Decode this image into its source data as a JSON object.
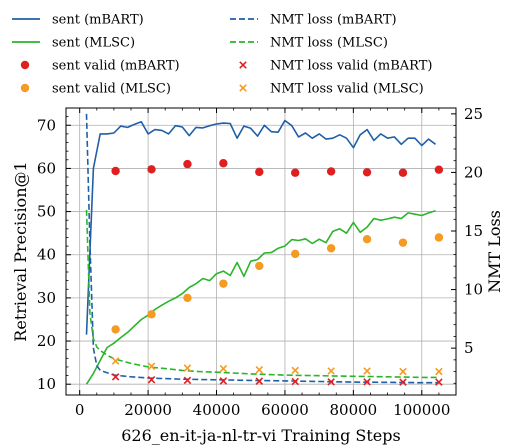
{
  "chart_data": {
    "type": "line",
    "xlabel": "626_en-it-ja-nl-tr-vi Training Steps",
    "ylabel": "Retrieval Precision@1",
    "y2label": "NMT Loss",
    "xlim": [
      -4000,
      110000
    ],
    "ylim": [
      7.5,
      74
    ],
    "y2lim": [
      1.0,
      25.5
    ],
    "xticks": [
      0,
      20000,
      40000,
      60000,
      80000,
      100000
    ],
    "xtick_labels": [
      "0",
      "20000",
      "40000",
      "60000",
      "80000",
      "100000"
    ],
    "yticks": [
      10,
      20,
      30,
      40,
      50,
      60,
      70
    ],
    "y2ticks": [
      5,
      10,
      15,
      20,
      25
    ],
    "grid": true,
    "legend_position": "top, outside, two columns",
    "legend": [
      {
        "label": "sent (mBART)",
        "color": "#1f5fa8",
        "style": "solid"
      },
      {
        "label": "NMT loss (mBART)",
        "color": "#1f5fa8",
        "style": "dashed"
      },
      {
        "label": "sent (MLSC)",
        "color": "#2ab52a",
        "style": "solid"
      },
      {
        "label": "NMT loss (MLSC)",
        "color": "#2ab52a",
        "style": "dashed"
      },
      {
        "label": "sent valid (mBART)",
        "color": "#e02020",
        "style": "dot"
      },
      {
        "label": "NMT loss valid (mBART)",
        "color": "#e02020",
        "style": "x"
      },
      {
        "label": "sent valid (MLSC)",
        "color": "#f59a23",
        "style": "dot"
      },
      {
        "label": "NMT loss valid (MLSC)",
        "color": "#f59a23",
        "style": "x"
      }
    ],
    "series": [
      {
        "name": "sent (mBART)",
        "axis": "left",
        "kind": "line",
        "color": "#1f5fa8",
        "x": [
          2000,
          4000,
          6000,
          8000,
          10000,
          12000,
          14000,
          16000,
          18000,
          20000,
          22000,
          24000,
          26000,
          28000,
          30000,
          32000,
          34000,
          36000,
          38000,
          40000,
          42000,
          44000,
          46000,
          48000,
          50000,
          52000,
          54000,
          56000,
          58000,
          60000,
          62000,
          64000,
          66000,
          68000,
          70000,
          72000,
          74000,
          76000,
          78000,
          80000,
          82000,
          84000,
          86000,
          88000,
          90000,
          92000,
          94000,
          96000,
          98000,
          100000,
          102000,
          104000
        ],
        "y": [
          21.5,
          60.0,
          68.0,
          68.0,
          68.2,
          69.8,
          69.5,
          70.2,
          70.8,
          68.0,
          69.0,
          68.8,
          68.0,
          69.9,
          69.6,
          67.6,
          69.5,
          69.4,
          69.9,
          70.3,
          70.5,
          70.4,
          67.0,
          69.8,
          69.3,
          67.5,
          70.0,
          68.5,
          68.4,
          71.1,
          69.9,
          67.3,
          68.2,
          67.0,
          68.0,
          66.8,
          67.0,
          67.8,
          67.0,
          64.8,
          67.8,
          69.0,
          66.5,
          68.0,
          67.0,
          67.3,
          65.6,
          67.0,
          67.0,
          65.3,
          66.8,
          65.6
        ]
      },
      {
        "name": "sent (MLSC)",
        "axis": "left",
        "kind": "line",
        "color": "#2ab52a",
        "x": [
          2000,
          4000,
          6000,
          8000,
          10000,
          12000,
          14000,
          16000,
          18000,
          20000,
          22000,
          24000,
          26000,
          28000,
          30000,
          32000,
          34000,
          36000,
          38000,
          40000,
          42000,
          44000,
          46000,
          48000,
          50000,
          52000,
          54000,
          56000,
          58000,
          60000,
          62000,
          64000,
          66000,
          68000,
          70000,
          72000,
          74000,
          76000,
          78000,
          80000,
          82000,
          84000,
          86000,
          88000,
          90000,
          92000,
          94000,
          96000,
          98000,
          100000,
          102000,
          104000
        ],
        "y": [
          10.0,
          12.5,
          15.5,
          18.5,
          19.5,
          20.8,
          22.0,
          23.5,
          25.0,
          26.0,
          27.3,
          28.3,
          29.2,
          30.0,
          31.0,
          32.4,
          33.3,
          34.5,
          34.0,
          35.6,
          36.2,
          35.2,
          38.2,
          35.0,
          38.5,
          38.9,
          40.4,
          40.5,
          41.5,
          42.0,
          43.5,
          43.3,
          43.7,
          42.6,
          43.6,
          42.8,
          45.4,
          46.0,
          45.0,
          47.5,
          45.2,
          46.4,
          48.4,
          48.0,
          48.3,
          48.7,
          48.4,
          49.7,
          49.4,
          49.1,
          49.7,
          50.2
        ]
      },
      {
        "name": "NMT loss (mBART)",
        "axis": "right",
        "kind": "line",
        "dashed": true,
        "color": "#1f5fa8",
        "x": [
          2000,
          3000,
          4000,
          5000,
          6000,
          8000,
          10000,
          15000,
          20000,
          30000,
          40000,
          50000,
          60000,
          70000,
          80000,
          90000,
          100000,
          105000
        ],
        "y": [
          25.0,
          14.0,
          5.0,
          3.5,
          3.1,
          2.9,
          2.7,
          2.55,
          2.45,
          2.35,
          2.3,
          2.25,
          2.2,
          2.15,
          2.1,
          2.08,
          2.05,
          2.05
        ]
      },
      {
        "name": "NMT loss (MLSC)",
        "axis": "right",
        "kind": "line",
        "dashed": true,
        "color": "#2ab52a",
        "x": [
          2000,
          3000,
          4000,
          5000,
          6000,
          8000,
          10000,
          15000,
          20000,
          25000,
          30000,
          35000,
          40000,
          50000,
          60000,
          70000,
          80000,
          90000,
          100000,
          105000
        ],
        "y": [
          16.8,
          8.0,
          5.8,
          5.1,
          4.8,
          4.4,
          4.1,
          3.7,
          3.4,
          3.25,
          3.1,
          3.0,
          2.95,
          2.8,
          2.7,
          2.65,
          2.6,
          2.55,
          2.5,
          2.5
        ]
      },
      {
        "name": "sent valid (mBART)",
        "axis": "left",
        "kind": "dots",
        "color": "#e02020",
        "x": [
          10500,
          21000,
          31500,
          42000,
          52500,
          63000,
          73500,
          84000,
          94500,
          105000
        ],
        "y": [
          59.4,
          59.8,
          61.0,
          61.2,
          59.2,
          59.0,
          59.3,
          59.1,
          59.0,
          59.7
        ]
      },
      {
        "name": "sent valid (MLSC)",
        "axis": "left",
        "kind": "dots",
        "color": "#f59a23",
        "x": [
          10500,
          21000,
          31500,
          42000,
          52500,
          63000,
          73500,
          84000,
          94500,
          105000
        ],
        "y": [
          22.7,
          26.2,
          30.0,
          33.3,
          37.4,
          40.2,
          41.5,
          43.6,
          42.8,
          44.0
        ]
      },
      {
        "name": "NMT loss valid (mBART)",
        "axis": "right",
        "kind": "x",
        "color": "#e02020",
        "x": [
          10500,
          21000,
          31500,
          42000,
          52500,
          63000,
          73500,
          84000,
          94500,
          105000
        ],
        "y": [
          2.55,
          2.3,
          2.25,
          2.2,
          2.18,
          2.15,
          2.12,
          2.12,
          2.1,
          2.1
        ]
      },
      {
        "name": "NMT loss valid (MLSC)",
        "axis": "right",
        "kind": "x",
        "color": "#f59a23",
        "x": [
          10500,
          21000,
          31500,
          42000,
          52500,
          63000,
          73500,
          84000,
          94500,
          105000
        ],
        "y": [
          3.9,
          3.45,
          3.3,
          3.25,
          3.15,
          3.1,
          3.05,
          3.05,
          3.0,
          3.0
        ]
      }
    ]
  }
}
